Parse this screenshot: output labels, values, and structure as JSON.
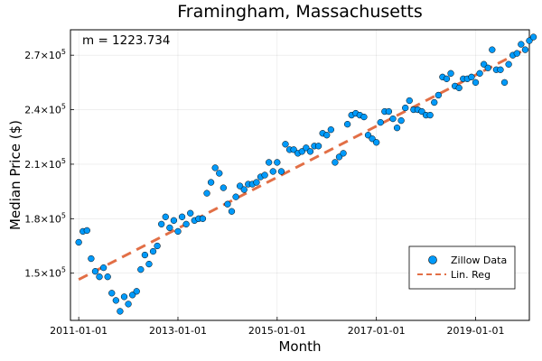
{
  "chart_data": {
    "type": "scatter",
    "title": "Framingham, Massachusetts",
    "xlabel": "Month",
    "ylabel": "Median Price ($)",
    "annotation": "m = 1223.734",
    "x_ticks": [
      "2011-01-01",
      "2013-01-01",
      "2015-01-01",
      "2017-01-01",
      "2019-01-01"
    ],
    "y_ticks": [
      {
        "value": 150000,
        "mantissa": "1.5",
        "exp": "5"
      },
      {
        "value": 180000,
        "mantissa": "1.8",
        "exp": "5"
      },
      {
        "value": 210000,
        "mantissa": "2.1",
        "exp": "5"
      },
      {
        "value": 240000,
        "mantissa": "2.4",
        "exp": "5"
      },
      {
        "value": 270000,
        "mantissa": "2.7",
        "exp": "5"
      }
    ],
    "xlim": [
      "2010-11-01",
      "2020-02-01"
    ],
    "ylim": [
      124000,
      284000
    ],
    "grid": true,
    "legend_position": "bottom-right",
    "series": [
      {
        "name": "Zillow Data",
        "kind": "scatter",
        "color": "#009AFA",
        "points": [
          [
            "2011-01-01",
            167000
          ],
          [
            "2011-02-01",
            173000
          ],
          [
            "2011-03-01",
            173500
          ],
          [
            "2011-04-01",
            158000
          ],
          [
            "2011-05-01",
            151000
          ],
          [
            "2011-06-01",
            148000
          ],
          [
            "2011-07-01",
            153000
          ],
          [
            "2011-08-01",
            148000
          ],
          [
            "2011-09-01",
            139000
          ],
          [
            "2011-10-01",
            135000
          ],
          [
            "2011-11-01",
            129000
          ],
          [
            "2011-12-01",
            137000
          ],
          [
            "2012-01-01",
            133000
          ],
          [
            "2012-02-01",
            138000
          ],
          [
            "2012-03-01",
            140000
          ],
          [
            "2012-04-01",
            152000
          ],
          [
            "2012-05-01",
            160000
          ],
          [
            "2012-06-01",
            155000
          ],
          [
            "2012-07-01",
            162000
          ],
          [
            "2012-08-01",
            165000
          ],
          [
            "2012-09-01",
            177000
          ],
          [
            "2012-10-01",
            181000
          ],
          [
            "2012-11-01",
            175000
          ],
          [
            "2012-12-01",
            179000
          ],
          [
            "2013-01-01",
            173000
          ],
          [
            "2013-02-01",
            181000
          ],
          [
            "2013-03-01",
            177000
          ],
          [
            "2013-04-01",
            183000
          ],
          [
            "2013-05-01",
            179000
          ],
          [
            "2013-06-01",
            180000
          ],
          [
            "2013-07-01",
            180000
          ],
          [
            "2013-08-01",
            194000
          ],
          [
            "2013-09-01",
            200000
          ],
          [
            "2013-10-01",
            208000
          ],
          [
            "2013-11-01",
            205000
          ],
          [
            "2013-12-01",
            197000
          ],
          [
            "2014-01-01",
            188000
          ],
          [
            "2014-02-01",
            184000
          ],
          [
            "2014-03-01",
            192000
          ],
          [
            "2014-04-01",
            198000
          ],
          [
            "2014-05-01",
            196000
          ],
          [
            "2014-06-01",
            199000
          ],
          [
            "2014-07-01",
            199000
          ],
          [
            "2014-08-01",
            200000
          ],
          [
            "2014-09-01",
            203000
          ],
          [
            "2014-10-01",
            204000
          ],
          [
            "2014-11-01",
            211000
          ],
          [
            "2014-12-01",
            206000
          ],
          [
            "2015-01-01",
            211000
          ],
          [
            "2015-02-01",
            206000
          ],
          [
            "2015-03-01",
            221000
          ],
          [
            "2015-04-01",
            218000
          ],
          [
            "2015-05-01",
            218000
          ],
          [
            "2015-06-01",
            216000
          ],
          [
            "2015-07-01",
            217000
          ],
          [
            "2015-08-01",
            219000
          ],
          [
            "2015-09-01",
            217000
          ],
          [
            "2015-10-01",
            220000
          ],
          [
            "2015-11-01",
            220000
          ],
          [
            "2015-12-01",
            227000
          ],
          [
            "2016-01-01",
            226000
          ],
          [
            "2016-02-01",
            229000
          ],
          [
            "2016-03-01",
            211000
          ],
          [
            "2016-04-01",
            214000
          ],
          [
            "2016-05-01",
            216000
          ],
          [
            "2016-06-01",
            232000
          ],
          [
            "2016-07-01",
            237000
          ],
          [
            "2016-08-01",
            238000
          ],
          [
            "2016-09-01",
            237000
          ],
          [
            "2016-10-01",
            236000
          ],
          [
            "2016-11-01",
            226000
          ],
          [
            "2016-12-01",
            224000
          ],
          [
            "2017-01-01",
            222000
          ],
          [
            "2017-02-01",
            233000
          ],
          [
            "2017-03-01",
            239000
          ],
          [
            "2017-04-01",
            239000
          ],
          [
            "2017-05-01",
            235000
          ],
          [
            "2017-06-01",
            230000
          ],
          [
            "2017-07-01",
            234000
          ],
          [
            "2017-08-01",
            241000
          ],
          [
            "2017-09-01",
            245000
          ],
          [
            "2017-10-01",
            240000
          ],
          [
            "2017-11-01",
            240000
          ],
          [
            "2017-12-01",
            239000
          ],
          [
            "2018-01-01",
            237000
          ],
          [
            "2018-02-01",
            237000
          ],
          [
            "2018-03-01",
            244000
          ],
          [
            "2018-04-01",
            248000
          ],
          [
            "2018-05-01",
            258000
          ],
          [
            "2018-06-01",
            257000
          ],
          [
            "2018-07-01",
            260000
          ],
          [
            "2018-08-01",
            253000
          ],
          [
            "2018-09-01",
            252000
          ],
          [
            "2018-10-01",
            257000
          ],
          [
            "2018-11-01",
            257000
          ],
          [
            "2018-12-01",
            258000
          ],
          [
            "2019-01-01",
            255000
          ],
          [
            "2019-02-01",
            260000
          ],
          [
            "2019-03-01",
            265000
          ],
          [
            "2019-04-01",
            263000
          ],
          [
            "2019-05-01",
            273000
          ],
          [
            "2019-06-01",
            262000
          ],
          [
            "2019-07-01",
            262000
          ],
          [
            "2019-08-01",
            255000
          ],
          [
            "2019-09-01",
            265000
          ],
          [
            "2019-10-01",
            270000
          ],
          [
            "2019-11-01",
            271000
          ],
          [
            "2019-12-01",
            276000
          ],
          [
            "2020-01-01",
            273000
          ],
          [
            "2020-02-01",
            278000
          ],
          [
            "2020-03-01",
            280000
          ]
        ]
      },
      {
        "name": "Lin. Reg",
        "kind": "line",
        "dashed": true,
        "color": "#E26F46",
        "points": [
          [
            "2011-01-01",
            146500
          ],
          [
            "2019-12-01",
            272000
          ]
        ]
      }
    ]
  }
}
